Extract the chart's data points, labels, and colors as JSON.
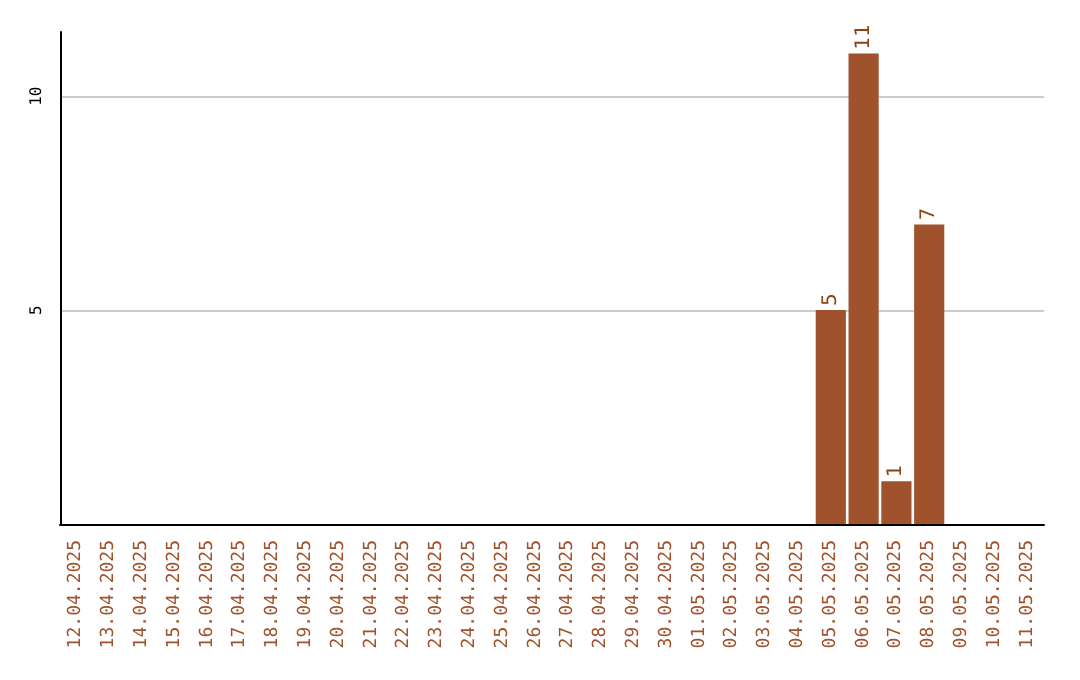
{
  "chart_data": {
    "type": "bar",
    "categories": [
      "12.04.2025",
      "13.04.2025",
      "14.04.2025",
      "15.04.2025",
      "16.04.2025",
      "17.04.2025",
      "18.04.2025",
      "19.04.2025",
      "20.04.2025",
      "21.04.2025",
      "22.04.2025",
      "23.04.2025",
      "24.04.2025",
      "25.04.2025",
      "26.04.2025",
      "27.04.2025",
      "28.04.2025",
      "29.04.2025",
      "30.04.2025",
      "01.05.2025",
      "02.05.2025",
      "03.05.2025",
      "04.05.2025",
      "05.05.2025",
      "06.05.2025",
      "07.05.2025",
      "08.05.2025",
      "09.05.2025",
      "10.05.2025",
      "11.05.2025"
    ],
    "values": [
      0,
      0,
      0,
      0,
      0,
      0,
      0,
      0,
      0,
      0,
      0,
      0,
      0,
      0,
      0,
      0,
      0,
      0,
      0,
      0,
      0,
      0,
      0,
      5,
      11,
      1,
      7,
      0,
      0,
      0
    ],
    "value_labels": [
      null,
      null,
      null,
      null,
      null,
      null,
      null,
      null,
      null,
      null,
      null,
      null,
      null,
      null,
      null,
      null,
      null,
      null,
      null,
      null,
      null,
      null,
      null,
      "5",
      "11",
      "1",
      "7",
      null,
      null,
      null
    ],
    "color": "#a0522d",
    "ylim": [
      0,
      11.5
    ],
    "yticks": [
      5,
      10
    ],
    "grid": "y"
  }
}
